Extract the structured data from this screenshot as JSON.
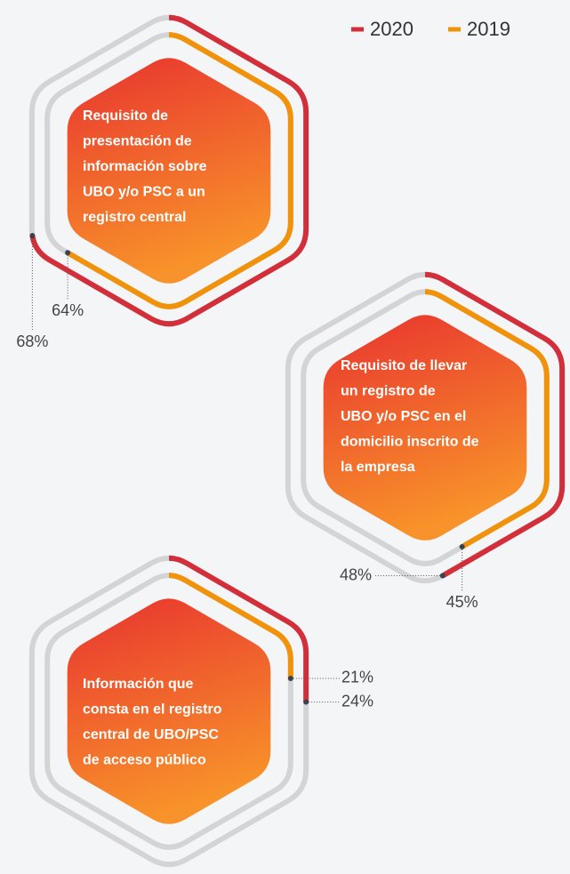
{
  "chart_data": {
    "type": "hexagon-progress",
    "categories": [
      [
        "Requisito de",
        "presentación de",
        "información sobre",
        "UBO y/o PSC a un",
        "registro central"
      ],
      [
        "Requisito de llevar",
        "un registro de",
        "UBO y/o PSC en el",
        "domicilio inscrito de",
        "la empresa"
      ],
      [
        "Información que",
        "consta en el registro",
        "central de UBO/PSC",
        "de acceso público"
      ]
    ],
    "series": [
      {
        "name": "2020",
        "color": "#d32f3a",
        "values": [
          68,
          48,
          24
        ],
        "value_labels": [
          "68%",
          "48%",
          "24%"
        ]
      },
      {
        "name": "2019",
        "color": "#f0920a",
        "values": [
          64,
          45,
          21
        ],
        "value_labels": [
          "64%",
          "45%",
          "21%"
        ]
      }
    ],
    "track_color": "#d4d4d6"
  }
}
